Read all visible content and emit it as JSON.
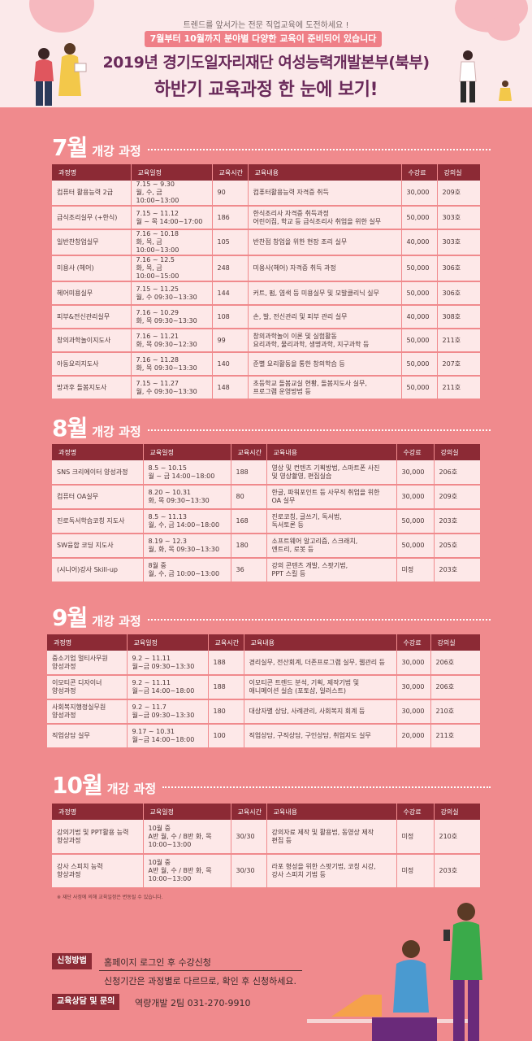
{
  "header": {
    "top_line": "트렌드를 앞서가는 전문 직업교육에 도전하세요 !",
    "banner": "7월부터 10월까지 분야별 다양한 교육이 준비되어 있습니다",
    "title_line1": "2019년 경기도일자리재단 여성능력개발본부(북부)",
    "title_line2": "하반기 교육과정 한 눈에 보기!"
  },
  "columns": [
    "과정명",
    "교육일정",
    "교육시간",
    "교육내용",
    "수강료",
    "강의실"
  ],
  "sections": [
    {
      "month": "7월",
      "subtitle": "개강 과정",
      "rows": [
        {
          "name": "컴퓨터 활용능력 2급",
          "schedule": "7.15 ~ 9.30\n월, 수, 금 10:00~13:00",
          "hours": "90",
          "content": "컴퓨터활용능력 자격증 취득",
          "fee": "30,000",
          "room": "209호"
        },
        {
          "name": "급식조리실무 (+한식)",
          "schedule": "7.15 ~ 11.12\n월 ~ 목 14:00~17:00",
          "hours": "186",
          "content": "한식조리사 자격증 취득과정\n어린이집, 학교 등 급식조리사 취업을 위한 실무",
          "fee": "50,000",
          "room": "303호"
        },
        {
          "name": "일반찬창업실무",
          "schedule": "7.16 ~ 10.18\n화, 목, 금 10:00~13:00",
          "hours": "105",
          "content": "반찬점 창업을 위한 현장 조리 실무",
          "fee": "40,000",
          "room": "303호"
        },
        {
          "name": "미용사 (헤어)",
          "schedule": "7.16 ~ 12.5\n화, 목, 금 10:00~15:00",
          "hours": "248",
          "content": "미용사(헤어) 자격증 취득 과정",
          "fee": "50,000",
          "room": "306호"
        },
        {
          "name": "헤어미용실무",
          "schedule": "7.15 ~ 11.25\n월, 수 09:30~13:30",
          "hours": "144",
          "content": "커트, 펌, 염색 등 미용실무 및 모발클리닉 실무",
          "fee": "50,000",
          "room": "306호"
        },
        {
          "name": "피부&전신관리실무",
          "schedule": "7.16 ~ 10.29\n화, 목 09:30~13:30",
          "hours": "108",
          "content": "손, 발, 전신관리 및 피부 관리 실무",
          "fee": "40,000",
          "room": "308호"
        },
        {
          "name": "창의과학놀이지도사",
          "schedule": "7.16 ~ 11.21\n화, 목 09:30~12:30",
          "hours": "99",
          "content": "창의과학놀이 이론 및 실험활동\n요리과학, 물리과학, 생명과학, 지구과학 등",
          "fee": "50,000",
          "room": "211호"
        },
        {
          "name": "아동요리지도사",
          "schedule": "7.16 ~ 11.28\n화, 목 09:30~13:30",
          "hours": "140",
          "content": "준별 요리활동을 통한 창의학습 등",
          "fee": "50,000",
          "room": "207호"
        },
        {
          "name": "방과후 돌봄지도사",
          "schedule": "7.15 ~ 11.27\n월, 수 09:30~13:30",
          "hours": "148",
          "content": "초등학교 돌봄교실 현황, 돌봄지도사 실무,\n프로그램 운영방법 등",
          "fee": "50,000",
          "room": "211호"
        }
      ]
    },
    {
      "month": "8월",
      "subtitle": "개강 과정",
      "rows": [
        {
          "name": "SNS 크리에이터 양성과정",
          "schedule": "8.5 ~ 10.15\n월 ~ 금 14:00~18:00",
          "hours": "188",
          "content": "영상 및 컨텐츠 기획방법, 스마트폰 사진\n및 영상촬영, 편집실습",
          "fee": "30,000",
          "room": "206호"
        },
        {
          "name": "컴퓨터 OA실무",
          "schedule": "8.20 ~ 10.31\n화, 목 09:30~13:30",
          "hours": "80",
          "content": "한글, 파워포인트 등 사무직 취업을 위한\nOA 실무",
          "fee": "30,000",
          "room": "209호"
        },
        {
          "name": "진로독서학습코칭 지도사",
          "schedule": "8.5 ~ 11.13\n월, 수, 금 14:00~18:00",
          "hours": "168",
          "content": "진로코칭, 글쓰기, 독서법,\n독서토론 등",
          "fee": "50,000",
          "room": "203호"
        },
        {
          "name": "SW융합 코딩 지도사",
          "schedule": "8.19 ~ 12.3\n월, 화, 목 09:30~13:30",
          "hours": "180",
          "content": "소프트웨어 알고리즘, 스크래치,\n엔트리, 로봇 등",
          "fee": "50,000",
          "room": "205호"
        },
        {
          "name": "(시니어)강사 Skill-up",
          "schedule": "8월 중\n월, 수, 금 10:00~13:00",
          "hours": "36",
          "content": "강의 콘텐츠 개발, 스팟기법,\nPPT 스킬 등",
          "fee": "미정",
          "room": "203호"
        }
      ]
    },
    {
      "month": "9월",
      "subtitle": "개강 과정",
      "rows": [
        {
          "name": "중소기업 멀티사무원\n양성과정",
          "schedule": "9.2 ~ 11.11\n월~금 09:30~13:30",
          "hours": "188",
          "content": "경리실무, 전산회계, 더존프로그램 실무, 웹관리 등",
          "fee": "30,000",
          "room": "206호"
        },
        {
          "name": "이모티콘 디자이너\n양성과정",
          "schedule": "9.2 ~ 11.11\n월~금 14:00~18:00",
          "hours": "188",
          "content": "이모티콘 트렌드 분석, 기획, 제작기법 및\n애니메이션 실습 (포토샵, 일러스트)",
          "fee": "30,000",
          "room": "206호"
        },
        {
          "name": "사회복지행정실무원\n양성과정",
          "schedule": "9.2 ~ 11.7\n월~금 09:30~13:30",
          "hours": "180",
          "content": "대상자별 상담, 사례관리, 사회복지 회계 등",
          "fee": "30,000",
          "room": "210호"
        },
        {
          "name": "직업상담 실무",
          "schedule": "9.17 ~ 10.31\n월~금 14:00~18:00",
          "hours": "100",
          "content": "직업상담, 구직상담, 구인상담, 취업지도 실무",
          "fee": "20,000",
          "room": "211호"
        }
      ]
    },
    {
      "month": "10월",
      "subtitle": "개강 과정",
      "rows": [
        {
          "name": "강의기법 및 PPT활용 능력\n향상과정",
          "schedule": "10월 중\nA반 월, 수 / B반 화, 목\n10:00~13:00",
          "hours": "30/30",
          "content": "강의자료 제작 및 활용법, 동영상 제작\n편집 등",
          "fee": "미정",
          "room": "210호"
        },
        {
          "name": "강사 스피치 능력\n향상과정",
          "schedule": "10월 중\nA반 월, 수 / B반 화, 목\n10:00~13:00",
          "hours": "30/30",
          "content": "라포 형성을 위한 스팟기법, 코칭 시강,\n강사 스피치 기법 등",
          "fee": "미정",
          "room": "203호"
        }
      ]
    }
  ],
  "note": "※ 재단 사정에 의해 교육일정은 변동될 수 있습니다.",
  "apply": {
    "label": "신청방법",
    "text": "홈페이지 로그인 후 수강신청",
    "subtext": "신청기간은 과정별로 다르므로, 확인 후 신청하세요."
  },
  "contact": {
    "label": "교육상담 및 문의",
    "text": "역량개발 2팀 031-270-9910"
  },
  "colors": {
    "background": "#f08a8d",
    "header_bg": "#fbe9ea",
    "table_header": "#8c2a35",
    "title": "#6a2a5a"
  }
}
